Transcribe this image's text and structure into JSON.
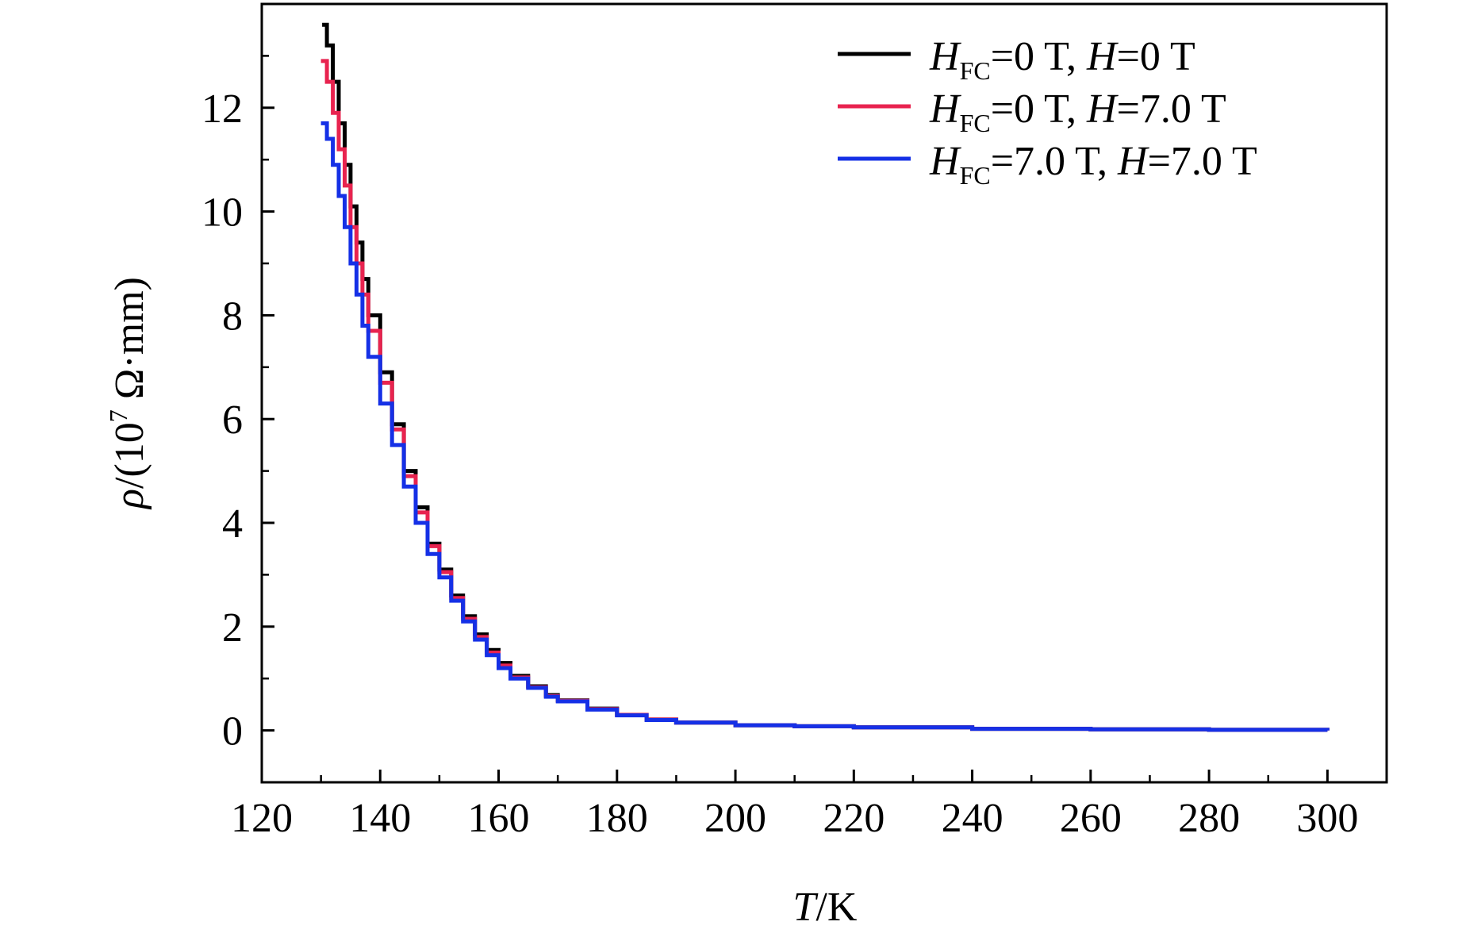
{
  "chart_data": {
    "type": "line",
    "xlabel": {
      "var": "T",
      "unit": "/K"
    },
    "ylabel": {
      "var": "ρ",
      "unit_prefix": "/(10",
      "unit_exp": "7",
      "unit_suffix": " Ω·mm)"
    },
    "xlim": [
      120,
      310
    ],
    "ylim": [
      -1,
      14
    ],
    "xticks": [
      120,
      140,
      160,
      180,
      200,
      220,
      240,
      260,
      280,
      300
    ],
    "yticks": [
      0,
      2,
      4,
      6,
      8,
      10,
      12
    ],
    "grid": false,
    "legend_position": "top-right",
    "series": [
      {
        "name": "H_FC=0 T, H=0 T",
        "legend": {
          "h1": "H",
          "sub1": "FC",
          "mid": "=0 T, ",
          "h2": "H",
          "tail": "=0 T"
        },
        "color": "#000000",
        "x": [
          130.2,
          131,
          132,
          133,
          134,
          135,
          136,
          137,
          138,
          140,
          142,
          144,
          146,
          148,
          150,
          152,
          154,
          156,
          158,
          160,
          162,
          165,
          168,
          170,
          175,
          180,
          185,
          190,
          200,
          210,
          220,
          240,
          260,
          280,
          300
        ],
        "y": [
          13.6,
          13.2,
          12.5,
          11.7,
          10.9,
          10.1,
          9.4,
          8.7,
          8.0,
          6.9,
          5.9,
          5.0,
          4.3,
          3.6,
          3.1,
          2.6,
          2.2,
          1.85,
          1.55,
          1.3,
          1.05,
          0.85,
          0.68,
          0.58,
          0.42,
          0.3,
          0.21,
          0.15,
          0.1,
          0.08,
          0.06,
          0.03,
          0.02,
          0.01,
          0.0
        ]
      },
      {
        "name": "H_FC=0 T, H=7.0 T",
        "legend": {
          "h1": "H",
          "sub1": "FC",
          "mid": "=0 T, ",
          "h2": "H",
          "tail": "=7.0 T"
        },
        "color": "#e8234f",
        "x": [
          130.0,
          131,
          132,
          133,
          134,
          135,
          136,
          137,
          138,
          140,
          142,
          144,
          146,
          148,
          150,
          152,
          154,
          156,
          158,
          160,
          162,
          165,
          168,
          170,
          175,
          180,
          185,
          190,
          200,
          210,
          220,
          240,
          260,
          280,
          300
        ],
        "y": [
          12.9,
          12.5,
          11.9,
          11.2,
          10.5,
          9.7,
          9.0,
          8.4,
          7.7,
          6.7,
          5.8,
          4.9,
          4.2,
          3.55,
          3.05,
          2.55,
          2.15,
          1.8,
          1.5,
          1.25,
          1.02,
          0.83,
          0.66,
          0.57,
          0.41,
          0.3,
          0.21,
          0.15,
          0.1,
          0.08,
          0.06,
          0.03,
          0.02,
          0.01,
          0.0
        ]
      },
      {
        "name": "H_FC=7.0 T, H=7.0 T",
        "legend": {
          "h1": "H",
          "sub1": "FC",
          "mid": "=7.0 T, ",
          "h2": "H",
          "tail": "=7.0 T"
        },
        "color": "#1530e6",
        "x": [
          130.0,
          131,
          132,
          133,
          134,
          135,
          136,
          137,
          138,
          140,
          142,
          144,
          146,
          148,
          150,
          152,
          154,
          156,
          158,
          160,
          162,
          165,
          168,
          170,
          175,
          180,
          185,
          190,
          200,
          210,
          220,
          240,
          260,
          280,
          300
        ],
        "y": [
          11.7,
          11.4,
          10.9,
          10.3,
          9.7,
          9.0,
          8.4,
          7.8,
          7.2,
          6.3,
          5.5,
          4.7,
          4.0,
          3.4,
          2.95,
          2.5,
          2.1,
          1.75,
          1.45,
          1.2,
          1.0,
          0.82,
          0.65,
          0.56,
          0.4,
          0.29,
          0.2,
          0.15,
          0.1,
          0.08,
          0.06,
          0.03,
          0.02,
          0.01,
          0.0
        ]
      }
    ]
  }
}
